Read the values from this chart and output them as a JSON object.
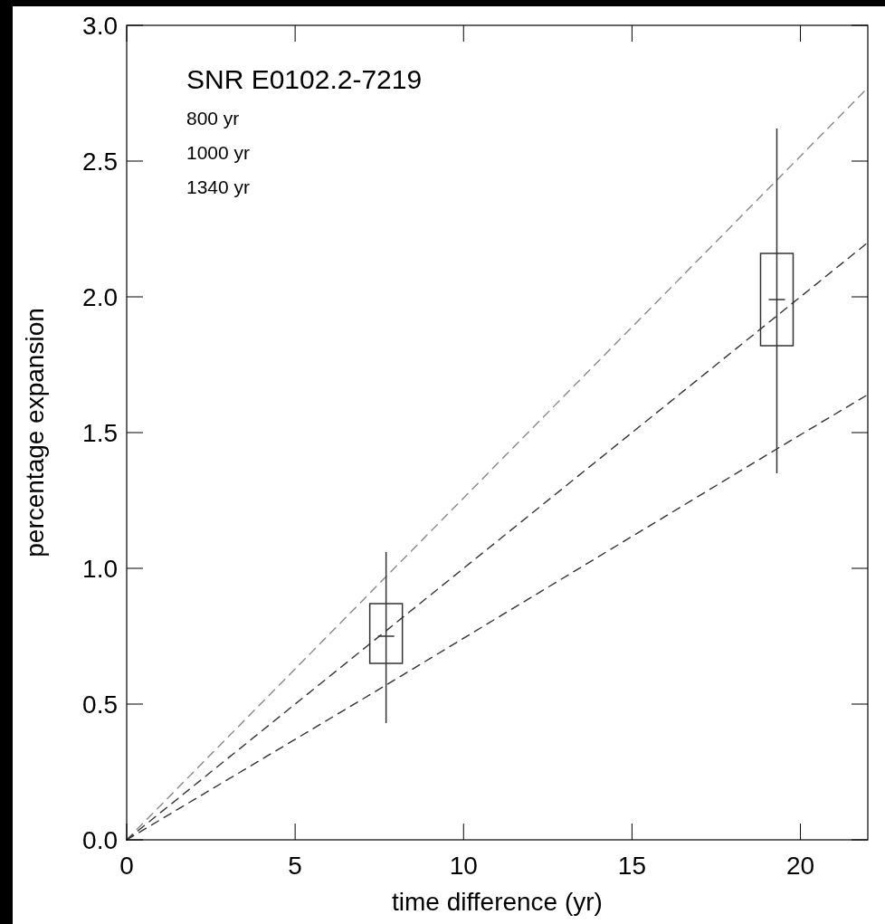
{
  "chart_data": {
    "type": "line",
    "xlabel": "time difference (yr)",
    "ylabel": "percentage expansion",
    "annotations": [
      "SNR E0102.2-7219",
      "800 yr",
      "1000 yr",
      "1340 yr"
    ],
    "xlim": [
      0,
      22
    ],
    "ylim": [
      0,
      3
    ],
    "xticks": [
      0,
      5,
      10,
      15,
      20
    ],
    "yticks": [
      {
        "value": 0,
        "label": "0.0"
      },
      0.5,
      {
        "value": 1,
        "label": "1.0"
      },
      1.5,
      {
        "value": 2,
        "label": "2.0"
      },
      2.5,
      {
        "value": 3,
        "label": "3.0"
      }
    ],
    "line_style": "dashed",
    "series": [
      {
        "color": "#888888",
        "x": [
          0,
          22
        ],
        "values": [
          0,
          2.77
        ]
      },
      {
        "color": "#333333",
        "x": [
          0,
          22
        ],
        "values": [
          0,
          2.2
        ]
      },
      {
        "color": "#333333",
        "x": [
          0,
          7.7,
          19.3,
          22
        ],
        "values": [
          0,
          0.57,
          1.44,
          1.64
        ]
      },
      {
        "type": "box",
        "color": "#333333",
        "x": [
          7.7,
          19.3
        ],
        "boxes": [
          {
            "low": 0.43,
            "q1": 0.65,
            "median": 0.75,
            "q3": 0.87,
            "high": 1.06
          },
          {
            "low": 1.35,
            "q1": 1.82,
            "median": 1.99,
            "q3": 2.16,
            "high": 2.62
          }
        ]
      }
    ]
  }
}
